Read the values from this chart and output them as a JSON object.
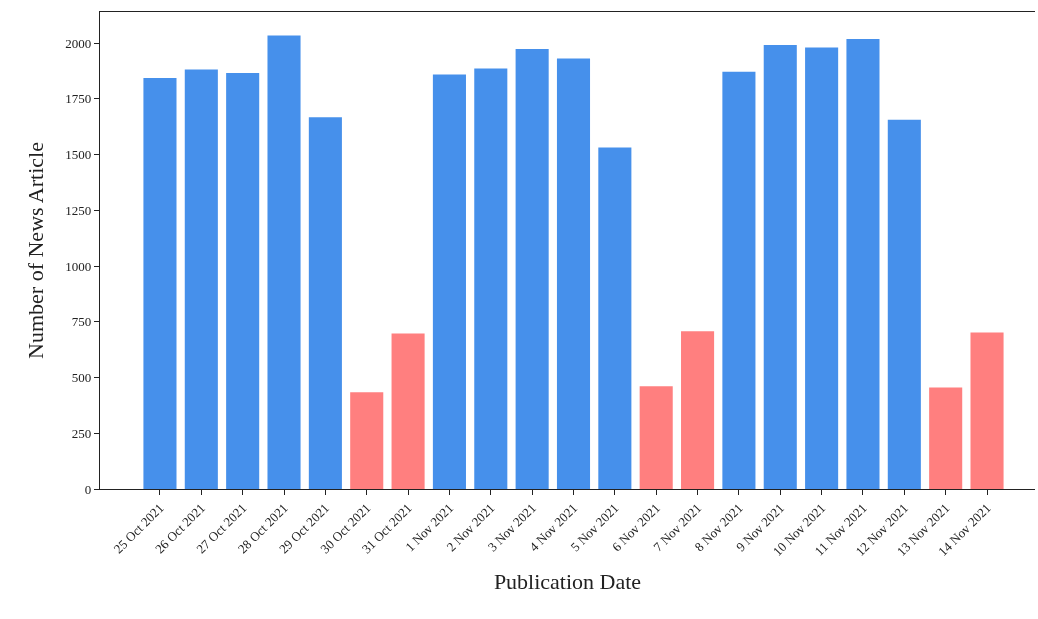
{
  "chart_data": {
    "type": "bar",
    "xlabel": "Publication Date",
    "ylabel": "Number of News Article",
    "categories": [
      "25 Oct 2021",
      "26 Oct 2021",
      "27 Oct 2021",
      "28 Oct 2021",
      "29 Oct 2021",
      "30 Oct 2021",
      "31 Oct 2021",
      "1 Nov 2021",
      "2 Nov 2021",
      "3 Nov 2021",
      "4 Nov 2021",
      "5 Nov 2021",
      "6 Nov 2021",
      "7 Nov 2021",
      "8 Nov 2021",
      "9 Nov 2021",
      "10 Nov 2021",
      "11 Nov 2021",
      "12 Nov 2021",
      "13 Nov 2021",
      "14 Nov 2021"
    ],
    "values": [
      1844,
      1882,
      1866,
      2035,
      1668,
      434,
      698,
      1860,
      1887,
      1974,
      1931,
      1532,
      461,
      708,
      1872,
      1992,
      1981,
      2019,
      1657,
      455,
      702
    ],
    "colors": [
      "#4690eb",
      "#4690eb",
      "#4690eb",
      "#4690eb",
      "#4690eb",
      "#ff7f7f",
      "#ff7f7f",
      "#4690eb",
      "#4690eb",
      "#4690eb",
      "#4690eb",
      "#4690eb",
      "#ff7f7f",
      "#ff7f7f",
      "#4690eb",
      "#4690eb",
      "#4690eb",
      "#4690eb",
      "#4690eb",
      "#ff7f7f",
      "#ff7f7f"
    ],
    "ylim": [
      0,
      2140
    ],
    "yticks": [
      0,
      250,
      500,
      750,
      1000,
      1250,
      1500,
      1750,
      2000
    ]
  }
}
